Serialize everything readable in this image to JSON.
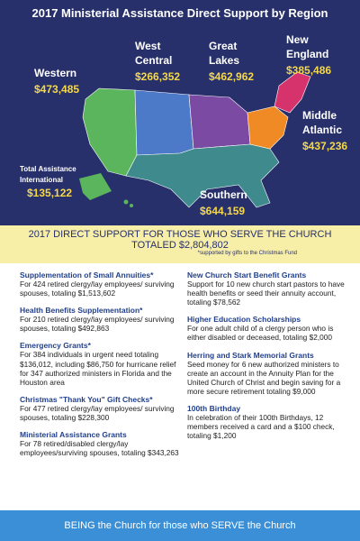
{
  "header": {
    "title": "2017 Ministerial Assistance Direct Support by Region"
  },
  "regions": [
    {
      "lines": [
        "Western"
      ],
      "value": "$473,485"
    },
    {
      "lines": [
        "West",
        "Central"
      ],
      "value": "$266,352"
    },
    {
      "lines": [
        "Great",
        "Lakes"
      ],
      "value": "$462,962"
    },
    {
      "lines": [
        "New",
        "England"
      ],
      "value": "$385,486"
    },
    {
      "lines": [
        "Middle",
        "Atlantic"
      ],
      "value": "$437,236"
    },
    {
      "lines": [
        "Southern"
      ],
      "value": "$644,159"
    },
    {
      "lines": [
        "Total Assistance",
        "International"
      ],
      "value": "$135,122"
    }
  ],
  "band": {
    "line1": "2017 DIRECT SUPPORT FOR THOSE WHO SERVE THE CHURCH",
    "line2": "TOTALED $2,804,802",
    "note": "*supported by gifts to the Christmas Fund"
  },
  "items": [
    {
      "title": "Supplementation of Small Annuities*",
      "body": "For 424 retired clergy/lay employees/ surviving spouses, totaling $1,513,602"
    },
    {
      "title": "Health Benefits Supplementation*",
      "body": "For 210 retired clergy/lay employees/ surviving spouses, totaling $492,863"
    },
    {
      "title": "Emergency Grants*",
      "body": "For 384 individuals in urgent need totaling $136,012, including $86,750 for hurricane relief for 347 authorized ministers in Florida and the Houston area"
    },
    {
      "title": "Christmas \"Thank You\" Gift Checks*",
      "body": "For 477 retired clergy/lay employees/ surviving spouses, totaling $228,300"
    },
    {
      "title": "Ministerial Assistance Grants",
      "body": "For 78 retired/disabled clergy/lay employees/surviving spouses, totaling $343,263"
    },
    {
      "title": "New Church Start Benefit Grants",
      "body": "Support for 10 new church start pastors to have health benefits or seed their annuity account, totaling $78,562"
    },
    {
      "title": "Higher Education Scholarships",
      "body": "For one adult child of a clergy person who is either disabled or deceased, totaling $2,000"
    },
    {
      "title": "Herring and Stark Memorial Grants",
      "body": "Seed money for 6 new authorized ministers to create an account in the Annuity Plan for the United Church of Christ and begin saving for a more secure retirement totaling $9,000"
    },
    {
      "title": "100th Birthday",
      "body": "In celebration of their 100th Birthdays, 12 members received a card and a $100 check, totaling $1,200"
    }
  ],
  "footer": "BEING the Church for those who SERVE the Church"
}
